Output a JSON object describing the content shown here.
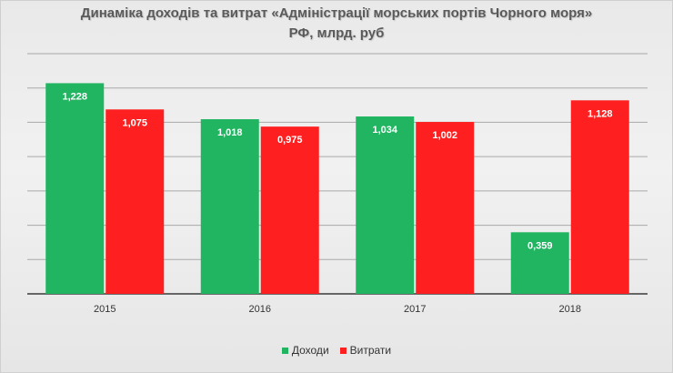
{
  "title_line1": "Динаміка доходів та витрат «Адміністрації морських портів Чорного моря»",
  "title_line2": "РФ, млрд. руб",
  "colors": {
    "income": "#21b561",
    "expense": "#fe2020"
  },
  "chart_data": {
    "type": "bar",
    "categories": [
      "2015",
      "2016",
      "2017",
      "2018"
    ],
    "series": [
      {
        "name": "Доходи",
        "values": [
          1.228,
          1.018,
          1.034,
          0.359
        ],
        "labels": [
          "1,228",
          "1,018",
          "1,034",
          "0,359"
        ]
      },
      {
        "name": "Витрати",
        "values": [
          1.075,
          0.975,
          1.002,
          1.128
        ],
        "labels": [
          "1,075",
          "0,975",
          "1,002",
          "1,128"
        ]
      }
    ],
    "ylim": [
      0,
      1.4
    ],
    "grid": true,
    "legend": "bottom"
  }
}
